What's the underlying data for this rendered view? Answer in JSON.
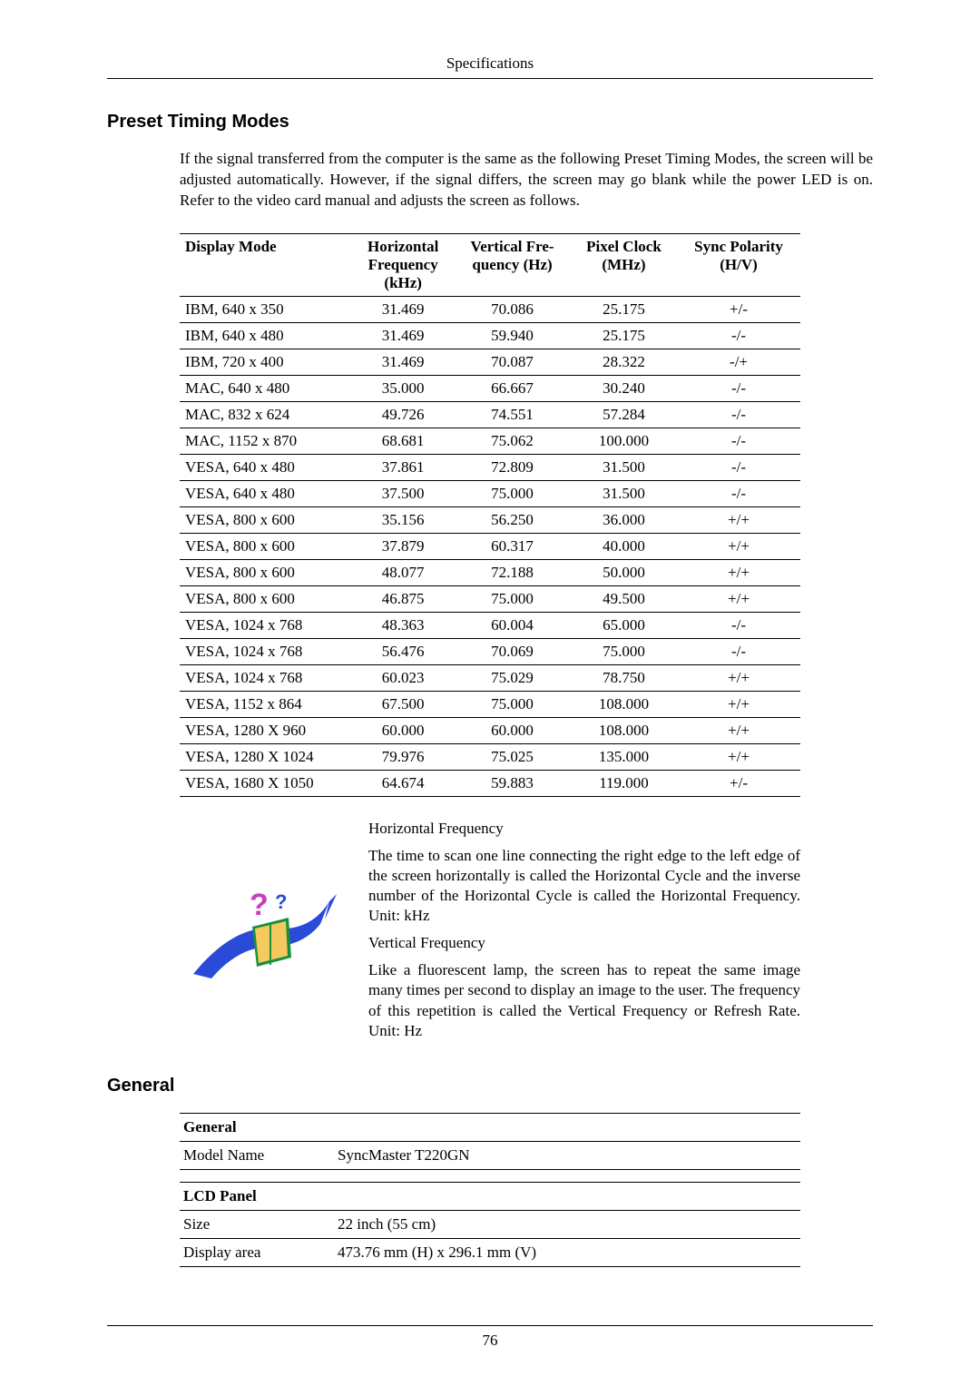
{
  "header": {
    "title": "Specifications"
  },
  "section_preset": {
    "heading": "Preset Timing Modes",
    "intro": "If the signal transferred from the computer is the same as the following Preset Timing Modes, the screen will be adjusted automatically. However, if the signal differs, the screen may go blank while the power LED is on. Refer to the video card manual and adjusts the screen as follows.",
    "columns": [
      "Display Mode",
      "Horizontal Frequency (kHz)",
      "Vertical Frequency (Hz)",
      "Pixel Clock (MHz)",
      "Sync Polarity (H/V)"
    ],
    "col_header_parts": {
      "c0": "Display Mode",
      "c1a": "Horizontal",
      "c1b": "Frequency",
      "c1c": "(kHz)",
      "c2a": "Vertical Fre-",
      "c2b": "quency (Hz)",
      "c3a": "Pixel Clock",
      "c3b": "(MHz)",
      "c4a": "Sync Polarity",
      "c4b": "(H/V)"
    },
    "rows": [
      [
        "IBM, 640 x 350",
        "31.469",
        "70.086",
        "25.175",
        "+/-"
      ],
      [
        "IBM, 640 x 480",
        "31.469",
        "59.940",
        "25.175",
        "-/-"
      ],
      [
        "IBM, 720 x 400",
        "31.469",
        "70.087",
        "28.322",
        "-/+"
      ],
      [
        "MAC, 640 x 480",
        "35.000",
        "66.667",
        "30.240",
        "-/-"
      ],
      [
        "MAC, 832 x 624",
        "49.726",
        "74.551",
        "57.284",
        "-/-"
      ],
      [
        "MAC, 1152 x 870",
        "68.681",
        "75.062",
        "100.000",
        "-/-"
      ],
      [
        "VESA, 640 x 480",
        "37.861",
        "72.809",
        "31.500",
        "-/-"
      ],
      [
        "VESA, 640 x 480",
        "37.500",
        "75.000",
        "31.500",
        "-/-"
      ],
      [
        "VESA, 800 x 600",
        "35.156",
        "56.250",
        "36.000",
        "+/+"
      ],
      [
        "VESA, 800 x 600",
        "37.879",
        "60.317",
        "40.000",
        "+/+"
      ],
      [
        "VESA, 800 x 600",
        "48.077",
        "72.188",
        "50.000",
        "+/+"
      ],
      [
        "VESA, 800 x 600",
        "46.875",
        "75.000",
        "49.500",
        "+/+"
      ],
      [
        "VESA, 1024 x 768",
        "48.363",
        "60.004",
        "65.000",
        "-/-"
      ],
      [
        "VESA, 1024 x 768",
        "56.476",
        "70.069",
        "75.000",
        "-/-"
      ],
      [
        "VESA, 1024 x 768",
        "60.023",
        "75.029",
        "78.750",
        "+/+"
      ],
      [
        "VESA, 1152 x 864",
        "67.500",
        "75.000",
        "108.000",
        "+/+"
      ],
      [
        "VESA, 1280 X 960",
        "60.000",
        "60.000",
        "108.000",
        "+/+"
      ],
      [
        "VESA, 1280 X 1024",
        "79.976",
        "75.025",
        "135.000",
        "+/+"
      ],
      [
        "VESA, 1680 X 1050",
        "64.674",
        "59.883",
        "119.000",
        "+/-"
      ]
    ]
  },
  "freq_desc": {
    "hf_title": "Horizontal Frequency",
    "hf_body": "The time to scan one line connecting the right edge to the left edge of the screen horizontally is called the Horizontal Cycle and the inverse number of the Horizontal Cycle is called the Horizontal Frequency. Unit: kHz",
    "vf_title": "Vertical Frequency",
    "vf_body": "Like a fluorescent lamp, the screen has to repeat the same image many times per second to display an image to the user. The frequency of this repetition is called the Vertical Frequency or Refresh Rate. Unit: Hz",
    "icon": {
      "colors": {
        "swoosh": "#2a4bd7",
        "book": "#1a8f3c",
        "page": "#f5c95d",
        "question": "#c93fbd"
      }
    }
  },
  "section_general": {
    "heading": "General",
    "groups": [
      {
        "title": "General",
        "rows": [
          [
            "Model Name",
            "SyncMaster T220GN"
          ]
        ]
      },
      {
        "title": "LCD Panel",
        "rows": [
          [
            "Size",
            "22 inch (55 cm)"
          ],
          [
            "Display area",
            "473.76 mm (H) x 296.1 mm (V)"
          ]
        ]
      }
    ]
  },
  "footer": {
    "page_number": "76"
  }
}
